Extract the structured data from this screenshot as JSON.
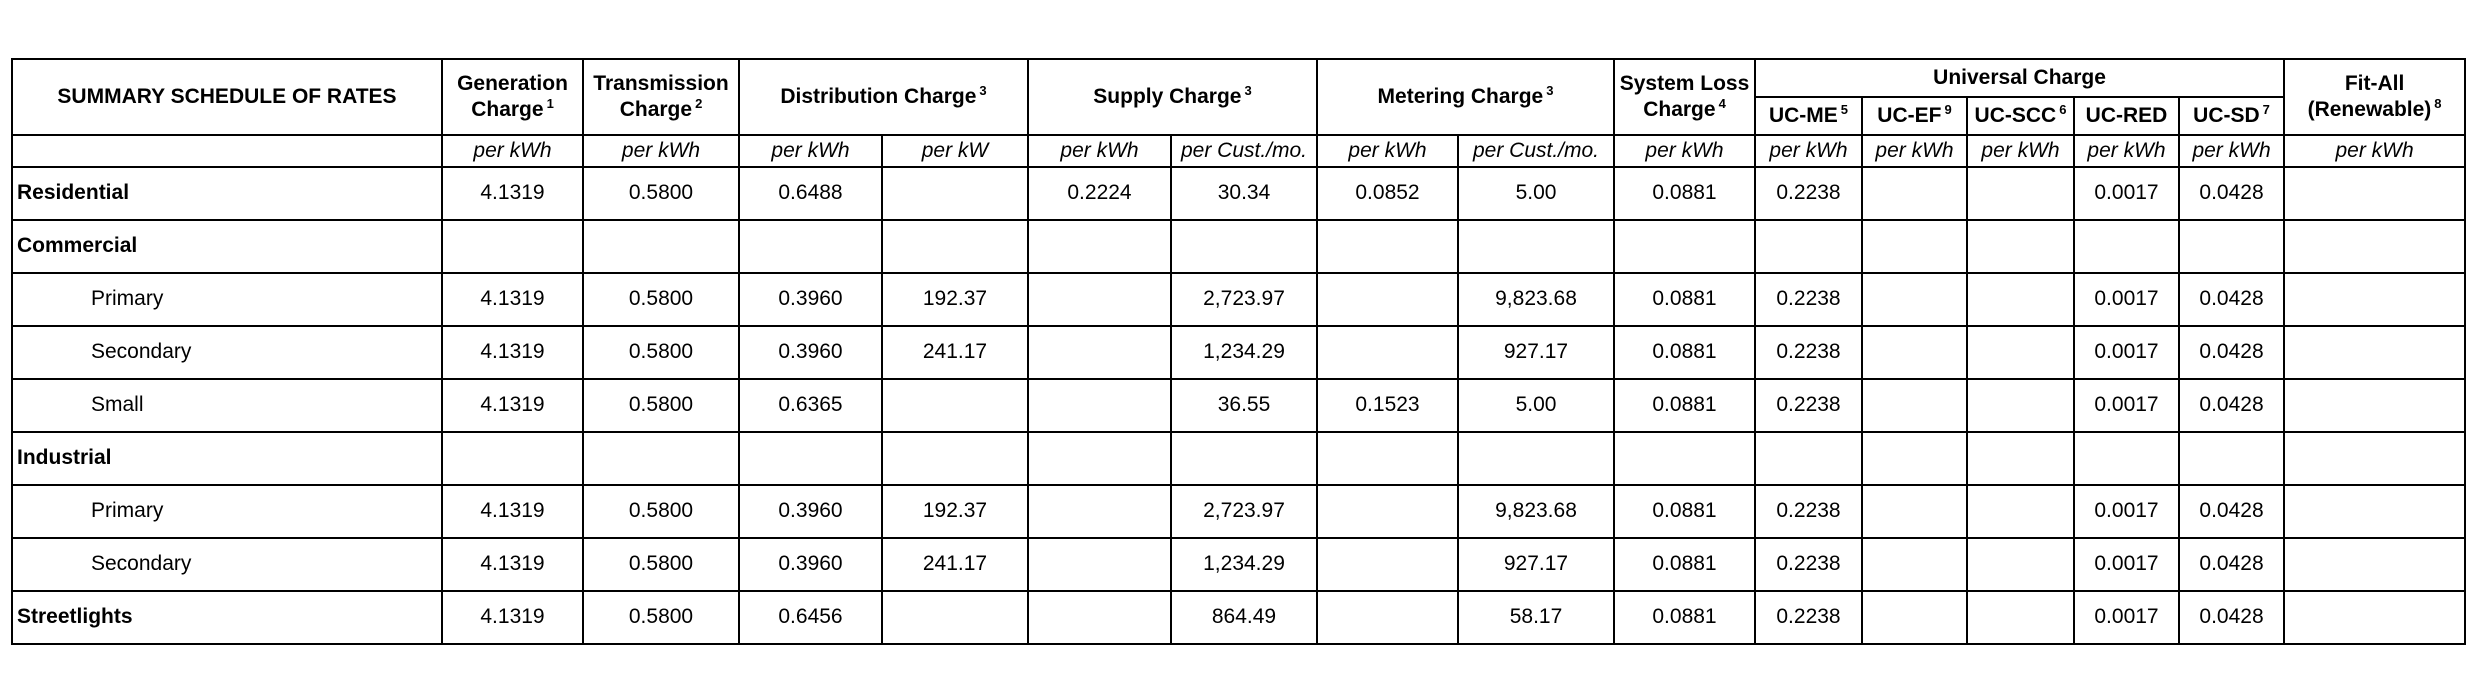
{
  "table": {
    "title": "SUMMARY SCHEDULE OF RATES",
    "headers": {
      "generation": {
        "line1": "Generation",
        "line2": "Charge",
        "note": "1"
      },
      "transmission": {
        "line1": "Transmission",
        "line2": "Charge",
        "note": "2"
      },
      "distribution": {
        "label": "Distribution Charge",
        "note": "3"
      },
      "supply": {
        "label": "Supply Charge",
        "note": "3"
      },
      "metering": {
        "label": "Metering Charge",
        "note": "3"
      },
      "system_loss": {
        "line1": "System Loss",
        "line2": "Charge",
        "note": "4"
      },
      "universal": {
        "label": "Universal Charge"
      },
      "uc_me": {
        "label": "UC-ME",
        "note": "5"
      },
      "uc_ef": {
        "label": "UC-EF",
        "note": "9"
      },
      "uc_scc": {
        "label": "UC-SCC",
        "note": "6"
      },
      "uc_red": {
        "label": "UC-RED"
      },
      "uc_sd": {
        "label": "UC-SD",
        "note": "7"
      },
      "fit_all": {
        "line1": "Fit-All",
        "line2": "(Renewable)",
        "note": "8"
      }
    },
    "units": [
      "per kWh",
      "per kWh",
      "per kWh",
      "per kW",
      "per kWh",
      "per Cust./mo.",
      "per kWh",
      "per Cust./mo.",
      "per kWh",
      "per kWh",
      "per kWh",
      "per kWh",
      "per kWh",
      "per kWh",
      "per kWh"
    ],
    "rows": [
      {
        "label": "Residential",
        "style": "main",
        "cells": [
          "4.1319",
          "0.5800",
          "0.6488",
          "",
          "0.2224",
          "30.34",
          "0.0852",
          "5.00",
          "0.0881",
          "0.2238",
          "",
          "",
          "0.0017",
          "0.0428",
          ""
        ]
      },
      {
        "label": "Commercial",
        "style": "main",
        "cells": [
          "",
          "",
          "",
          "",
          "",
          "",
          "",
          "",
          "",
          "",
          "",
          "",
          "",
          "",
          ""
        ]
      },
      {
        "label": "Primary",
        "style": "sub",
        "cells": [
          "4.1319",
          "0.5800",
          "0.3960",
          "192.37",
          "",
          "2,723.97",
          "",
          "9,823.68",
          "0.0881",
          "0.2238",
          "",
          "",
          "0.0017",
          "0.0428",
          ""
        ]
      },
      {
        "label": "Secondary",
        "style": "sub",
        "cells": [
          "4.1319",
          "0.5800",
          "0.3960",
          "241.17",
          "",
          "1,234.29",
          "",
          "927.17",
          "0.0881",
          "0.2238",
          "",
          "",
          "0.0017",
          "0.0428",
          ""
        ]
      },
      {
        "label": "Small",
        "style": "sub",
        "cells": [
          "4.1319",
          "0.5800",
          "0.6365",
          "",
          "",
          "36.55",
          "0.1523",
          "5.00",
          "0.0881",
          "0.2238",
          "",
          "",
          "0.0017",
          "0.0428",
          ""
        ]
      },
      {
        "label": "Industrial",
        "style": "main",
        "cells": [
          "",
          "",
          "",
          "",
          "",
          "",
          "",
          "",
          "",
          "",
          "",
          "",
          "",
          "",
          ""
        ]
      },
      {
        "label": "Primary",
        "style": "sub",
        "cells": [
          "4.1319",
          "0.5800",
          "0.3960",
          "192.37",
          "",
          "2,723.97",
          "",
          "9,823.68",
          "0.0881",
          "0.2238",
          "",
          "",
          "0.0017",
          "0.0428",
          ""
        ]
      },
      {
        "label": "Secondary",
        "style": "sub",
        "cells": [
          "4.1319",
          "0.5800",
          "0.3960",
          "241.17",
          "",
          "1,234.29",
          "",
          "927.17",
          "0.0881",
          "0.2238",
          "",
          "",
          "0.0017",
          "0.0428",
          ""
        ]
      },
      {
        "label": "Streetlights",
        "style": "main",
        "cells": [
          "4.1319",
          "0.5800",
          "0.6456",
          "",
          "",
          "864.49",
          "",
          "58.17",
          "0.0881",
          "0.2238",
          "",
          "",
          "0.0017",
          "0.0428",
          ""
        ]
      }
    ]
  }
}
